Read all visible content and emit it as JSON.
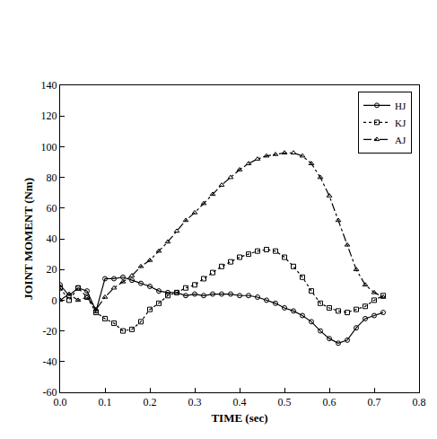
{
  "chart_data": {
    "type": "line",
    "x_label": "TIME (sec)",
    "y_label": "JOINT MOMENT (Nm)",
    "x": [
      0,
      0.02,
      0.04,
      0.06,
      0.08,
      0.1,
      0.12,
      0.14,
      0.16,
      0.18,
      0.2,
      0.22,
      0.24,
      0.26,
      0.28,
      0.3,
      0.32,
      0.34,
      0.36,
      0.38,
      0.4,
      0.42,
      0.44,
      0.46,
      0.48,
      0.5,
      0.52,
      0.54,
      0.56,
      0.58,
      0.6,
      0.62,
      0.64,
      0.66,
      0.68,
      0.7,
      0.72
    ],
    "series": [
      {
        "name": "HJ",
        "color": "#000000",
        "marker": "circle",
        "line_style": "solid",
        "values": [
          10,
          3,
          8,
          6,
          -7,
          14,
          14,
          15,
          13,
          11,
          9,
          6,
          5,
          5,
          3,
          4,
          3,
          4,
          4,
          4,
          3,
          3,
          2,
          0,
          -2,
          -5,
          -7,
          -10,
          -14,
          -20,
          -25,
          -28,
          -26,
          -18,
          -12,
          -10,
          -8
        ]
      },
      {
        "name": "KJ",
        "color": "#000000",
        "marker": "square",
        "line_style": "dotted",
        "values": [
          8,
          0,
          8,
          2,
          -8,
          -12,
          -15,
          -20,
          -19,
          -14,
          -6,
          -2,
          3,
          5,
          8,
          10,
          14,
          18,
          22,
          25,
          28,
          30,
          32,
          33,
          32,
          28,
          22,
          15,
          6,
          -2,
          -5,
          -7,
          -8,
          -6,
          -4,
          0,
          3
        ]
      },
      {
        "name": "AJ",
        "color": "#000000",
        "marker": "triangle",
        "line_style": "dashdot",
        "values": [
          0,
          4,
          0,
          2,
          -6,
          2,
          8,
          12,
          16,
          22,
          26,
          32,
          38,
          45,
          52,
          57,
          63,
          69,
          75,
          80,
          85,
          89,
          92,
          94,
          95,
          96,
          96,
          94,
          89,
          80,
          68,
          52,
          36,
          20,
          10,
          5,
          2
        ]
      }
    ],
    "xlim": [
      0,
      0.8
    ],
    "xticks": [
      {
        "value": 0,
        "label": "0.0"
      },
      0.1,
      0.2,
      0.3,
      0.4,
      0.5,
      0.6,
      0.7,
      0.8
    ],
    "ylim": [
      -60,
      140
    ],
    "yticks": [
      -60,
      -40,
      -20,
      0,
      20,
      40,
      60,
      80,
      100,
      120,
      140
    ],
    "grid": false,
    "legend": "top-right"
  }
}
